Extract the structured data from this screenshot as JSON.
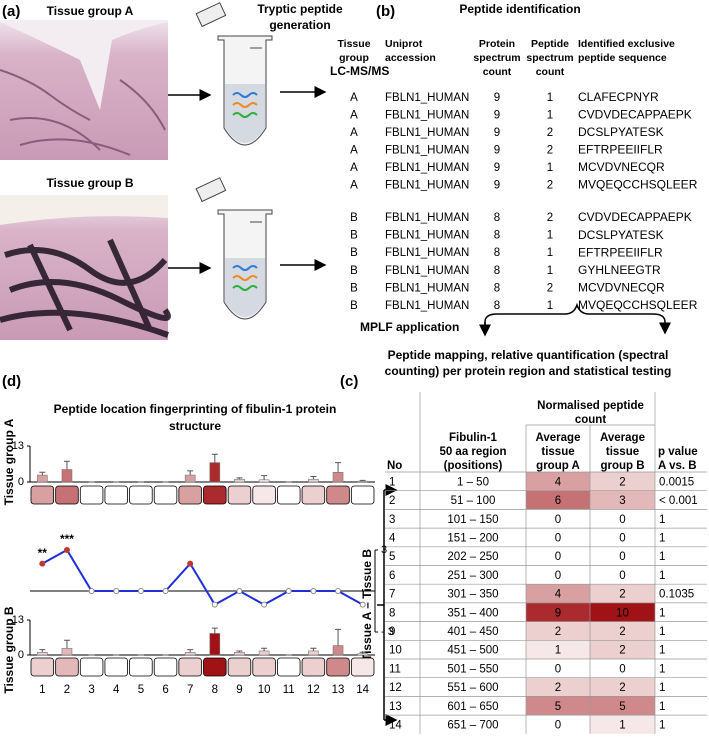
{
  "panel_a": {
    "label": "(a)",
    "group_a": "Tissue group A",
    "group_b": "Tissue group B",
    "digestion": [
      "Tryptic peptide",
      "generation"
    ],
    "lcms": "LC-MS/MS"
  },
  "panel_b": {
    "label": "(b)",
    "title": "Peptide identification",
    "columns": [
      [
        "Tissue",
        "group"
      ],
      [
        "Uniprot",
        "accession"
      ],
      [
        "Protein",
        "spectrum",
        "count"
      ],
      [
        "Peptide",
        "spectrum",
        "count"
      ],
      [
        "Identified exclusive",
        "peptide sequence"
      ]
    ],
    "rows": [
      [
        "A",
        "FBLN1_HUMAN",
        9,
        1,
        "CLAFECPNYR"
      ],
      [
        "A",
        "FBLN1_HUMAN",
        9,
        1,
        "CVDVDECAPPAEPK"
      ],
      [
        "A",
        "FBLN1_HUMAN",
        9,
        2,
        "DCSLPYATESK"
      ],
      [
        "A",
        "FBLN1_HUMAN",
        9,
        2,
        "EFTRPEEIIFLR"
      ],
      [
        "A",
        "FBLN1_HUMAN",
        9,
        1,
        "MCVDVNECQR"
      ],
      [
        "A",
        "FBLN1_HUMAN",
        9,
        2,
        "MVQEQCCHSQLEER"
      ],
      [
        "B",
        "FBLN1_HUMAN",
        8,
        2,
        "CVDVDECAPPAEPK"
      ],
      [
        "B",
        "FBLN1_HUMAN",
        8,
        1,
        "DCSLPYATESK"
      ],
      [
        "B",
        "FBLN1_HUMAN",
        8,
        1,
        "EFTRPEEIIFLR"
      ],
      [
        "B",
        "FBLN1_HUMAN",
        8,
        1,
        "GYHLNEEGTR"
      ],
      [
        "B",
        "FBLN1_HUMAN",
        8,
        2,
        "MCVDVNECQR"
      ],
      [
        "B",
        "FBLN1_HUMAN",
        8,
        1,
        "MVQEQCCHSQLEER"
      ]
    ]
  },
  "workflow": {
    "step": "MPLF application",
    "result": [
      "Peptide mapping, relative quantification (spectral",
      "counting) per protein region and statistical testing"
    ]
  },
  "panel_c": {
    "label": "(c)",
    "group_header": [
      "Normalised peptide",
      "count"
    ],
    "columns": [
      [
        "No"
      ],
      [
        "Fibulin-1",
        "50 aa region",
        "(positions)"
      ],
      [
        "Average",
        "tissue",
        "group A"
      ],
      [
        "Average",
        "tissue",
        "group B"
      ],
      [
        "p value",
        "A vs. B"
      ]
    ],
    "rows": [
      [
        1,
        "1 – 50",
        4,
        2,
        0.0015
      ],
      [
        2,
        "51 – 100",
        6,
        3,
        "< 0.001"
      ],
      [
        3,
        "101 – 150",
        0,
        0,
        1
      ],
      [
        4,
        "151 – 200",
        0,
        0,
        1
      ],
      [
        5,
        "202 – 250",
        0,
        0,
        1
      ],
      [
        6,
        "251 – 300",
        0,
        0,
        1
      ],
      [
        7,
        "301 – 350",
        4,
        2,
        0.1035
      ],
      [
        8,
        "351 – 400",
        9,
        10,
        1
      ],
      [
        9,
        "401 – 450",
        2,
        2,
        1
      ],
      [
        10,
        "451 – 500",
        1,
        2,
        1
      ],
      [
        11,
        "501 – 550",
        0,
        0,
        1
      ],
      [
        12,
        "551 – 600",
        2,
        2,
        1
      ],
      [
        13,
        "601 – 650",
        5,
        5,
        1
      ],
      [
        14,
        "651 – 700",
        0,
        1,
        1
      ]
    ],
    "side_label": "Tissue A – Tissue B"
  },
  "panel_d": {
    "label": "(d)",
    "title": [
      "Peptide location fingerprinting of fibulin-1 protein",
      "structure"
    ],
    "group_a_label": "Tissue group A",
    "group_b_label": "Tissue group B",
    "regions": [
      1,
      2,
      3,
      4,
      5,
      6,
      7,
      8,
      9,
      10,
      11,
      12,
      13,
      14
    ],
    "group_a": {
      "ylim": [
        0,
        13
      ],
      "yticks": [
        0,
        13
      ],
      "values": [
        2.5,
        4.5,
        0,
        0,
        0,
        0,
        2.5,
        7,
        1,
        0.8,
        0,
        1,
        3.5,
        0.3
      ],
      "errors": [
        1,
        3,
        0,
        0,
        0,
        0,
        1.5,
        3,
        0.5,
        1.5,
        0,
        1,
        3.5,
        0.3
      ]
    },
    "group_b": {
      "ylim": [
        0,
        13
      ],
      "yticks": [
        0,
        13
      ],
      "values": [
        1,
        2.5,
        0,
        0,
        0,
        0,
        1,
        8,
        1,
        1.5,
        0,
        1.5,
        3.5,
        0.5
      ],
      "errors": [
        1,
        3,
        0,
        0,
        0,
        0,
        1,
        2,
        0.5,
        1,
        0,
        1,
        6,
        0.5
      ]
    },
    "difference": {
      "ylim": [
        -3,
        3
      ],
      "yticks": [
        {
          "value": 3,
          "label": "3"
        },
        {
          "value": -3,
          "label": "- 3"
        }
      ],
      "values": [
        2,
        3,
        0,
        0,
        0,
        0,
        2,
        -1,
        0,
        -1,
        0,
        0,
        0,
        -1
      ],
      "color": "#1f2ed6"
    },
    "significance": [
      "**",
      "***",
      null,
      null,
      null,
      null,
      null,
      null,
      null,
      null,
      null,
      null,
      null,
      null
    ]
  }
}
